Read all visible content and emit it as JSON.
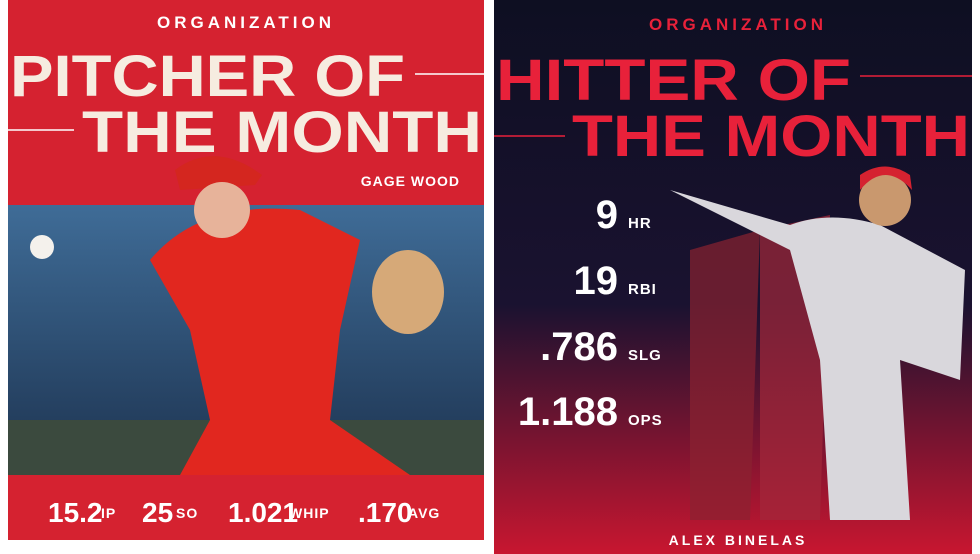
{
  "left": {
    "kicker": "ORGANIZATION",
    "title_lines": [
      "PITCHER OF",
      "THE MONTH"
    ],
    "player": "GAGE WOOD",
    "stats": [
      {
        "value": "15.2",
        "label": "IP"
      },
      {
        "value": "25",
        "label": "SO"
      },
      {
        "value": "1.021",
        "label": "WHIP"
      },
      {
        "value": ".170",
        "label": "AVG"
      }
    ]
  },
  "right": {
    "kicker": "ORGANIZATION",
    "title_lines": [
      "HITTER OF",
      "THE MONTH"
    ],
    "player": "ALEX BINELAS",
    "stats": [
      {
        "value": "9",
        "label": "HR"
      },
      {
        "value": "19",
        "label": "RBI"
      },
      {
        "value": ".786",
        "label": "SLG"
      },
      {
        "value": "1.188",
        "label": "OPS"
      }
    ]
  }
}
